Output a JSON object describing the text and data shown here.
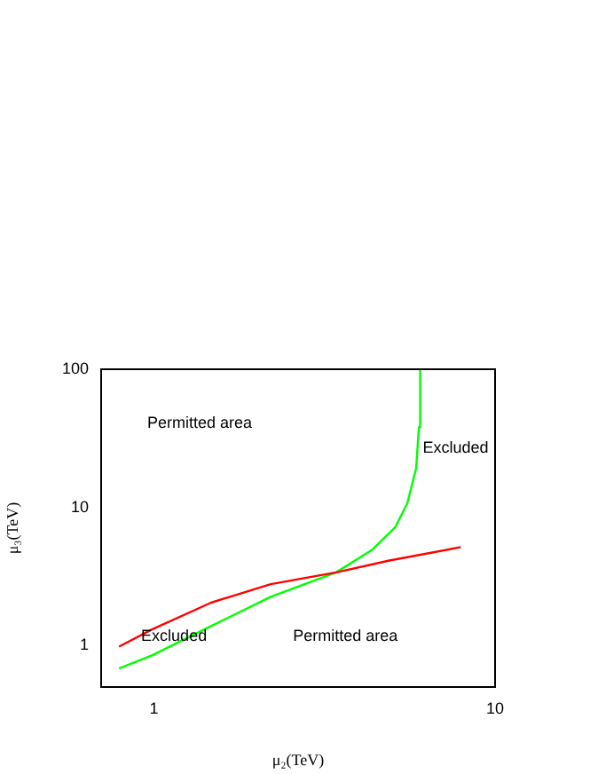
{
  "chart_data": {
    "type": "line",
    "xlabel": "μ₂(TeV)",
    "ylabel": "μ₃(TeV)",
    "log": "xy",
    "xlim": [
      0.7,
      10
    ],
    "ylim": [
      0.5,
      100
    ],
    "xticks": [
      1,
      10
    ],
    "yticks": [
      1,
      10,
      100
    ],
    "grid": false,
    "legend": false,
    "marker": "none",
    "series": [
      {
        "color": "#ff0000",
        "x": [
          0.79,
          0.99,
          1.47,
          2.2,
          3.42,
          4.9,
          7.94
        ],
        "values": [
          0.98,
          1.31,
          2.04,
          2.78,
          3.38,
          4.12,
          5.15
        ]
      },
      {
        "color": "#00ff00",
        "x": [
          0.79,
          0.99,
          1.47,
          2.2,
          3.42,
          4.35,
          5.1,
          5.53,
          5.87,
          5.98,
          6.03
        ],
        "values": [
          0.68,
          0.85,
          1.38,
          2.25,
          3.38,
          4.9,
          7.2,
          10.7,
          19.2,
          38,
          100
        ]
      }
    ],
    "annotations": [
      "Permitted area",
      "Excluded",
      "Excluded",
      "Permitted area"
    ]
  }
}
